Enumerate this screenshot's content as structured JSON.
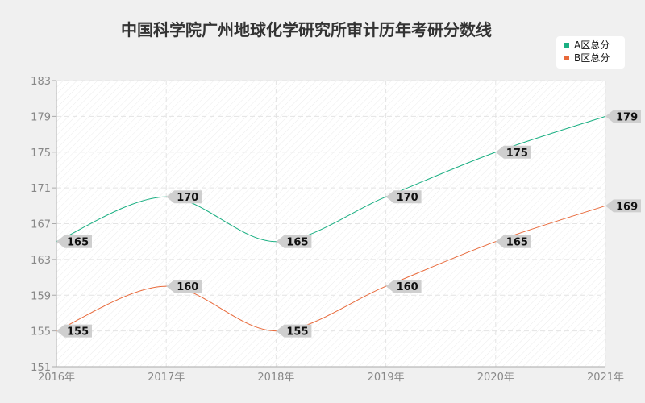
{
  "chart_data": {
    "type": "line",
    "title": "中国科学院广州地球化学研究所审计历年考研分数线",
    "categories": [
      "2016年",
      "2017年",
      "2018年",
      "2019年",
      "2020年",
      "2021年"
    ],
    "series": [
      {
        "name": "A区总分",
        "color": "#1aaf82",
        "values": [
          165,
          170,
          165,
          170,
          175,
          179
        ]
      },
      {
        "name": "B区总分",
        "color": "#e8693a",
        "values": [
          155,
          160,
          155,
          160,
          165,
          169
        ]
      }
    ],
    "ylim": [
      151,
      183
    ],
    "yticks": [
      151,
      155,
      159,
      163,
      167,
      171,
      175,
      179,
      183
    ],
    "grid": true,
    "legend": "top-right"
  }
}
